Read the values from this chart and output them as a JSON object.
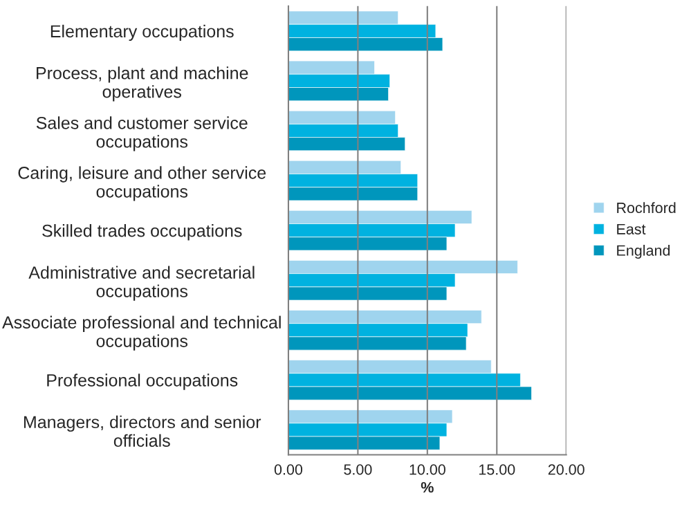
{
  "chart_data": {
    "type": "bar",
    "orientation": "horizontal",
    "xlabel": "%",
    "categories": [
      "Elementary occupations",
      "Process, plant and machine operatives",
      "Sales and customer service occupations",
      "Caring, leisure and other service occupations",
      "Skilled trades occupations",
      "Administrative and secretarial occupations",
      "Associate professional and technical occupations",
      "Professional occupations",
      "Managers, directors and senior officials"
    ],
    "series": [
      {
        "name": "Rochford",
        "color": "#9fd4ee",
        "values": [
          7.9,
          6.2,
          7.7,
          8.1,
          13.2,
          16.5,
          13.9,
          14.6,
          11.8
        ]
      },
      {
        "name": "East",
        "color": "#00b2e0",
        "values": [
          10.6,
          7.3,
          7.9,
          9.3,
          12.0,
          12.0,
          12.9,
          16.7,
          11.4
        ]
      },
      {
        "name": "England",
        "color": "#0096bc",
        "values": [
          11.1,
          7.2,
          8.4,
          9.3,
          11.4,
          11.4,
          12.8,
          17.5,
          10.9
        ]
      }
    ],
    "xlim": [
      0,
      20
    ],
    "xticks": [
      {
        "value": 0,
        "label": "0.00"
      },
      {
        "value": 5,
        "label": "5.00"
      },
      {
        "value": 10,
        "label": "10.00"
      },
      {
        "value": 15,
        "label": "15.00"
      },
      {
        "value": 20,
        "label": "20.00"
      }
    ],
    "grid": "x",
    "legend": "right"
  }
}
